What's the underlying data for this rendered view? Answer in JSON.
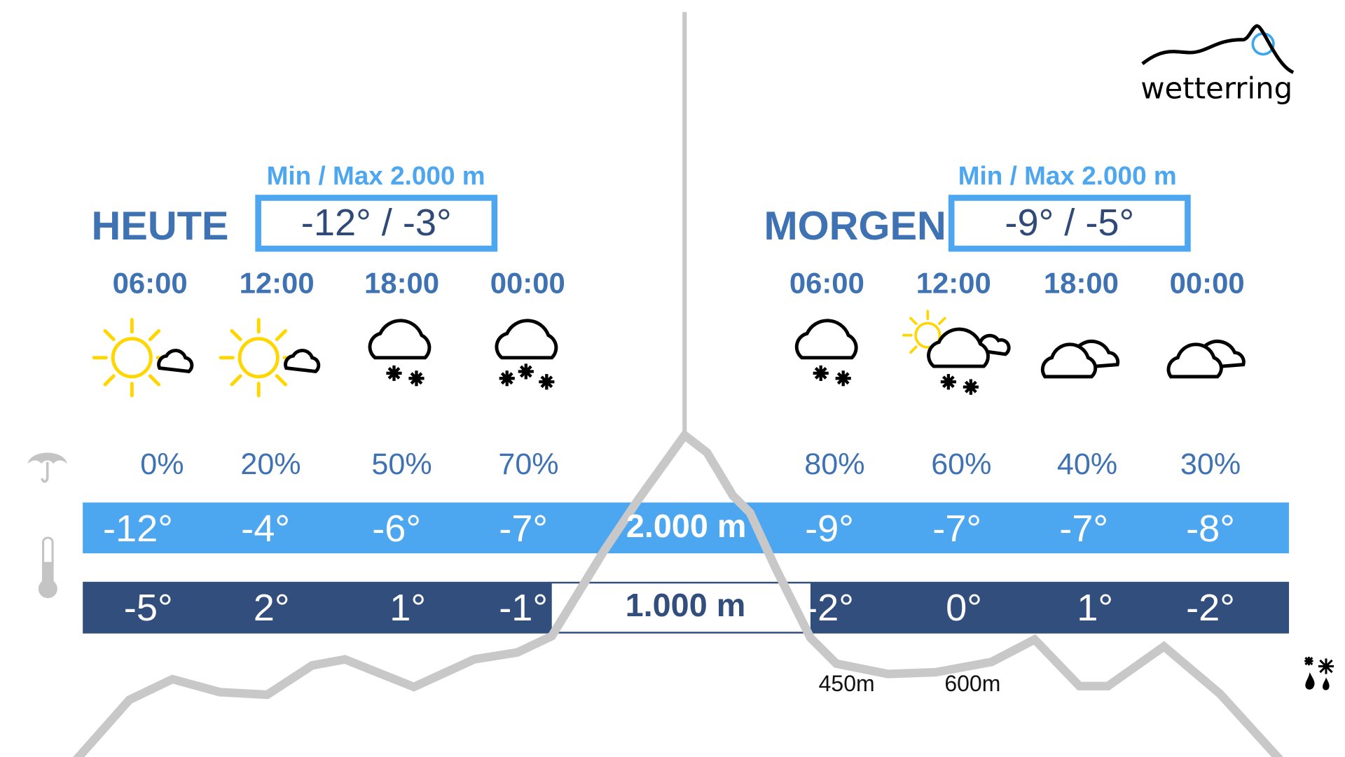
{
  "brand": {
    "name": "wetterring",
    "colors": {
      "accent": "#4da6f0",
      "dark": "#324e7c",
      "text": "#3e72b3",
      "mountain": "#c8c8c8"
    }
  },
  "today": {
    "label": "HEUTE",
    "minmax_label": "Min / Max 2.000 m",
    "range": "-12° / -3°",
    "times": [
      "06:00",
      "12:00",
      "18:00",
      "00:00"
    ],
    "icons": [
      "sun-cloud",
      "sun-cloud",
      "cloud-snow",
      "cloud-heavy-snow"
    ],
    "precip": [
      "0%",
      "20%",
      "50%",
      "70%"
    ],
    "temps_2000": [
      "-12°",
      "-4°",
      "-6°",
      "-7°"
    ],
    "temps_1000": [
      "-5°",
      "2°",
      "1°",
      "-1°"
    ]
  },
  "tomorrow": {
    "label": "MORGEN",
    "minmax_label": "Min / Max 2.000 m",
    "range": "-9° / -5°",
    "times": [
      "06:00",
      "12:00",
      "18:00",
      "00:00"
    ],
    "icons": [
      "cloud-snow",
      "sun-cloud-snow",
      "clouds",
      "clouds"
    ],
    "precip": [
      "80%",
      "60%",
      "40%",
      "30%"
    ],
    "temps_2000": [
      "-9°",
      "-7°",
      "-7°",
      "-8°"
    ],
    "temps_1000": [
      "-2°",
      "0°",
      "1°",
      "-2°"
    ]
  },
  "elevations": {
    "high": "2.000 m",
    "low": "1.000 m"
  },
  "snowline": {
    "values": [
      "450m",
      "600m"
    ],
    "icon": "snow-rain-icon"
  },
  "row_icons": {
    "precip": "umbrella-icon",
    "temperature": "thermometer-icon"
  }
}
